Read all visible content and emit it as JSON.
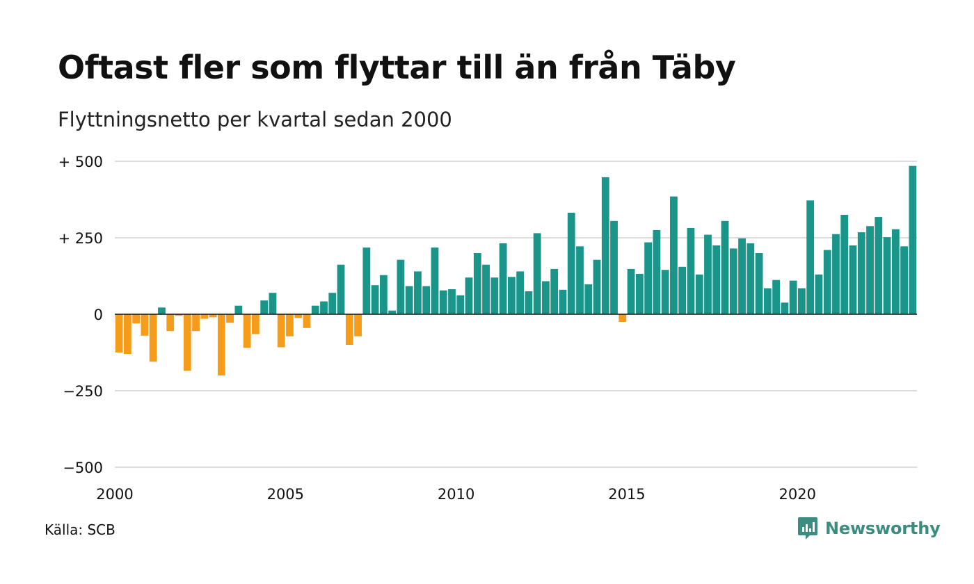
{
  "header": {
    "title": "Oftast fler som flyttar till än från Täby",
    "subtitle": "Flyttningsnetto per kvartal sedan 2000"
  },
  "footer": {
    "source": "Källa: SCB",
    "brand": "Newsworthy",
    "brand_icon": "newsworthy-logo-icon"
  },
  "colors": {
    "positive": "#19958a",
    "negative": "#f59c1a",
    "grid": "#dcdcdc",
    "zero_line": "#111111",
    "brand": "#3c8c80"
  },
  "chart_data": {
    "type": "bar",
    "title": "Oftast fler som flyttar till än från Täby",
    "subtitle": "Flyttningsnetto per kvartal sedan 2000",
    "xlabel": "",
    "ylabel": "",
    "ylim": [
      -500,
      500
    ],
    "yticks": [
      500,
      250,
      0,
      -250,
      -500
    ],
    "ytick_labels": [
      "+ 500",
      "+ 250",
      "0",
      "−250",
      "−500"
    ],
    "xticks": [
      2000,
      2005,
      2010,
      2015,
      2020
    ],
    "xtick_labels": [
      "2000",
      "2005",
      "2010",
      "2015",
      "2020"
    ],
    "grid": true,
    "legend": "none",
    "quarters_start": "2000 Q1",
    "values": [
      -125,
      -130,
      -30,
      -70,
      -155,
      22,
      -55,
      -5,
      -185,
      -55,
      -15,
      -10,
      -200,
      -28,
      28,
      -110,
      -65,
      45,
      70,
      -108,
      -72,
      -12,
      -45,
      28,
      42,
      70,
      162,
      -100,
      -72,
      218,
      95,
      128,
      12,
      178,
      92,
      140,
      92,
      218,
      78,
      82,
      62,
      120,
      200,
      162,
      120,
      232,
      122,
      140,
      75,
      265,
      108,
      148,
      80,
      332,
      222,
      98,
      178,
      448,
      305,
      -25,
      148,
      132,
      235,
      275,
      145,
      385,
      155,
      282,
      130,
      260,
      225,
      305,
      215,
      248,
      232,
      200,
      85,
      112,
      38,
      110,
      85,
      372,
      130,
      210,
      262,
      325,
      225,
      268,
      288,
      318,
      252,
      278,
      222,
      485
    ]
  }
}
